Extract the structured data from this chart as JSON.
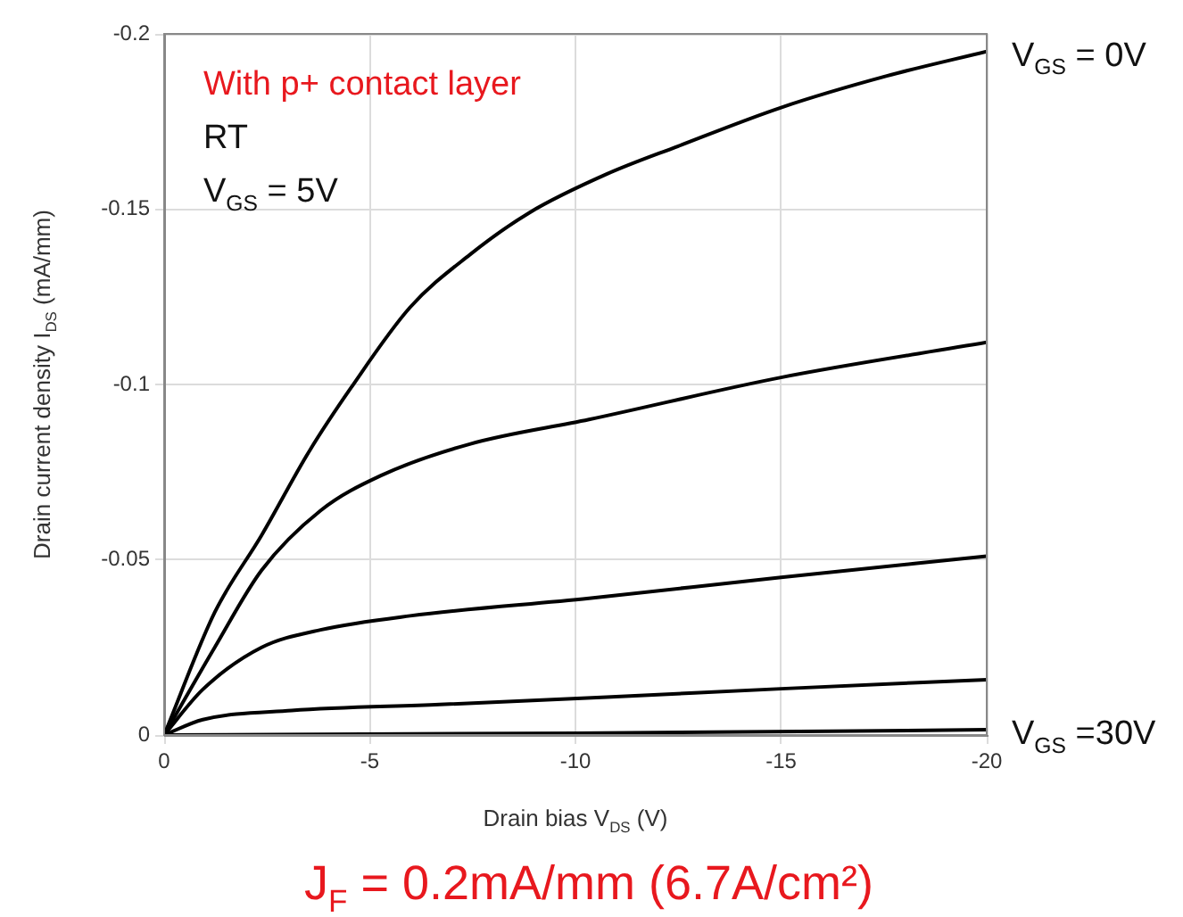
{
  "chart_data": {
    "type": "line",
    "xlabel": "Drain bias V$_{DS}$ (V)",
    "ylabel": "Drain current density I$_{DS}$ (mA/mm)",
    "xlim": [
      0,
      -20
    ],
    "ylim": [
      0,
      -0.2
    ],
    "xticks": [
      0,
      -5,
      -10,
      -15,
      -20
    ],
    "yticks": [
      0,
      -0.05,
      -0.1,
      -0.15,
      -0.2
    ],
    "grid": true,
    "marker": "none",
    "line_style": "solid",
    "annotations": [
      "With p+ contact layer",
      "RT",
      "V$_{GS}$ = 5V",
      "J$_{F}$ = 0.2mA/mm (6.7A/cm²)"
    ],
    "series": [
      {
        "name": "V$_{GS}$ = 0V",
        "color": "#000000",
        "x": [
          0,
          -1.23,
          -2.37,
          -3.53,
          -4.54,
          -5.98,
          -7.43,
          -8.88,
          -10.76,
          -12.5,
          -15,
          -17.57,
          -20
        ],
        "values": [
          0,
          -0.035,
          -0.057,
          -0.081,
          -0.099,
          -0.122,
          -0.137,
          -0.149,
          -0.16,
          -0.168,
          -0.179,
          -0.188,
          -0.195
        ]
      },
      {
        "color": "#000000",
        "x": [
          0,
          -1.23,
          -2.37,
          -3.8,
          -5.27,
          -7.43,
          -10.33,
          -15,
          -20
        ],
        "values": [
          0,
          -0.025,
          -0.047,
          -0.064,
          -0.074,
          -0.083,
          -0.09,
          -0.102,
          -0.112
        ]
      },
      {
        "color": "#000000",
        "x": [
          0,
          -0.94,
          -2.37,
          -3.8,
          -5.98,
          -10.33,
          -15,
          -20
        ],
        "values": [
          0,
          -0.013,
          -0.025,
          -0.03,
          -0.034,
          -0.039,
          -0.045,
          -0.051
        ]
      },
      {
        "color": "#000000",
        "x": [
          0,
          -0.94,
          -3.1,
          -6.7,
          -10.76,
          -15,
          -20
        ],
        "values": [
          0,
          -0.0044,
          -0.007,
          -0.0087,
          -0.0108,
          -0.0132,
          -0.0158
        ]
      },
      {
        "name": "V$_{GS}$ =30V",
        "color": "#000000",
        "x": [
          0,
          -10,
          -20
        ],
        "values": [
          0,
          -0.0005,
          -0.0015
        ]
      }
    ]
  }
}
